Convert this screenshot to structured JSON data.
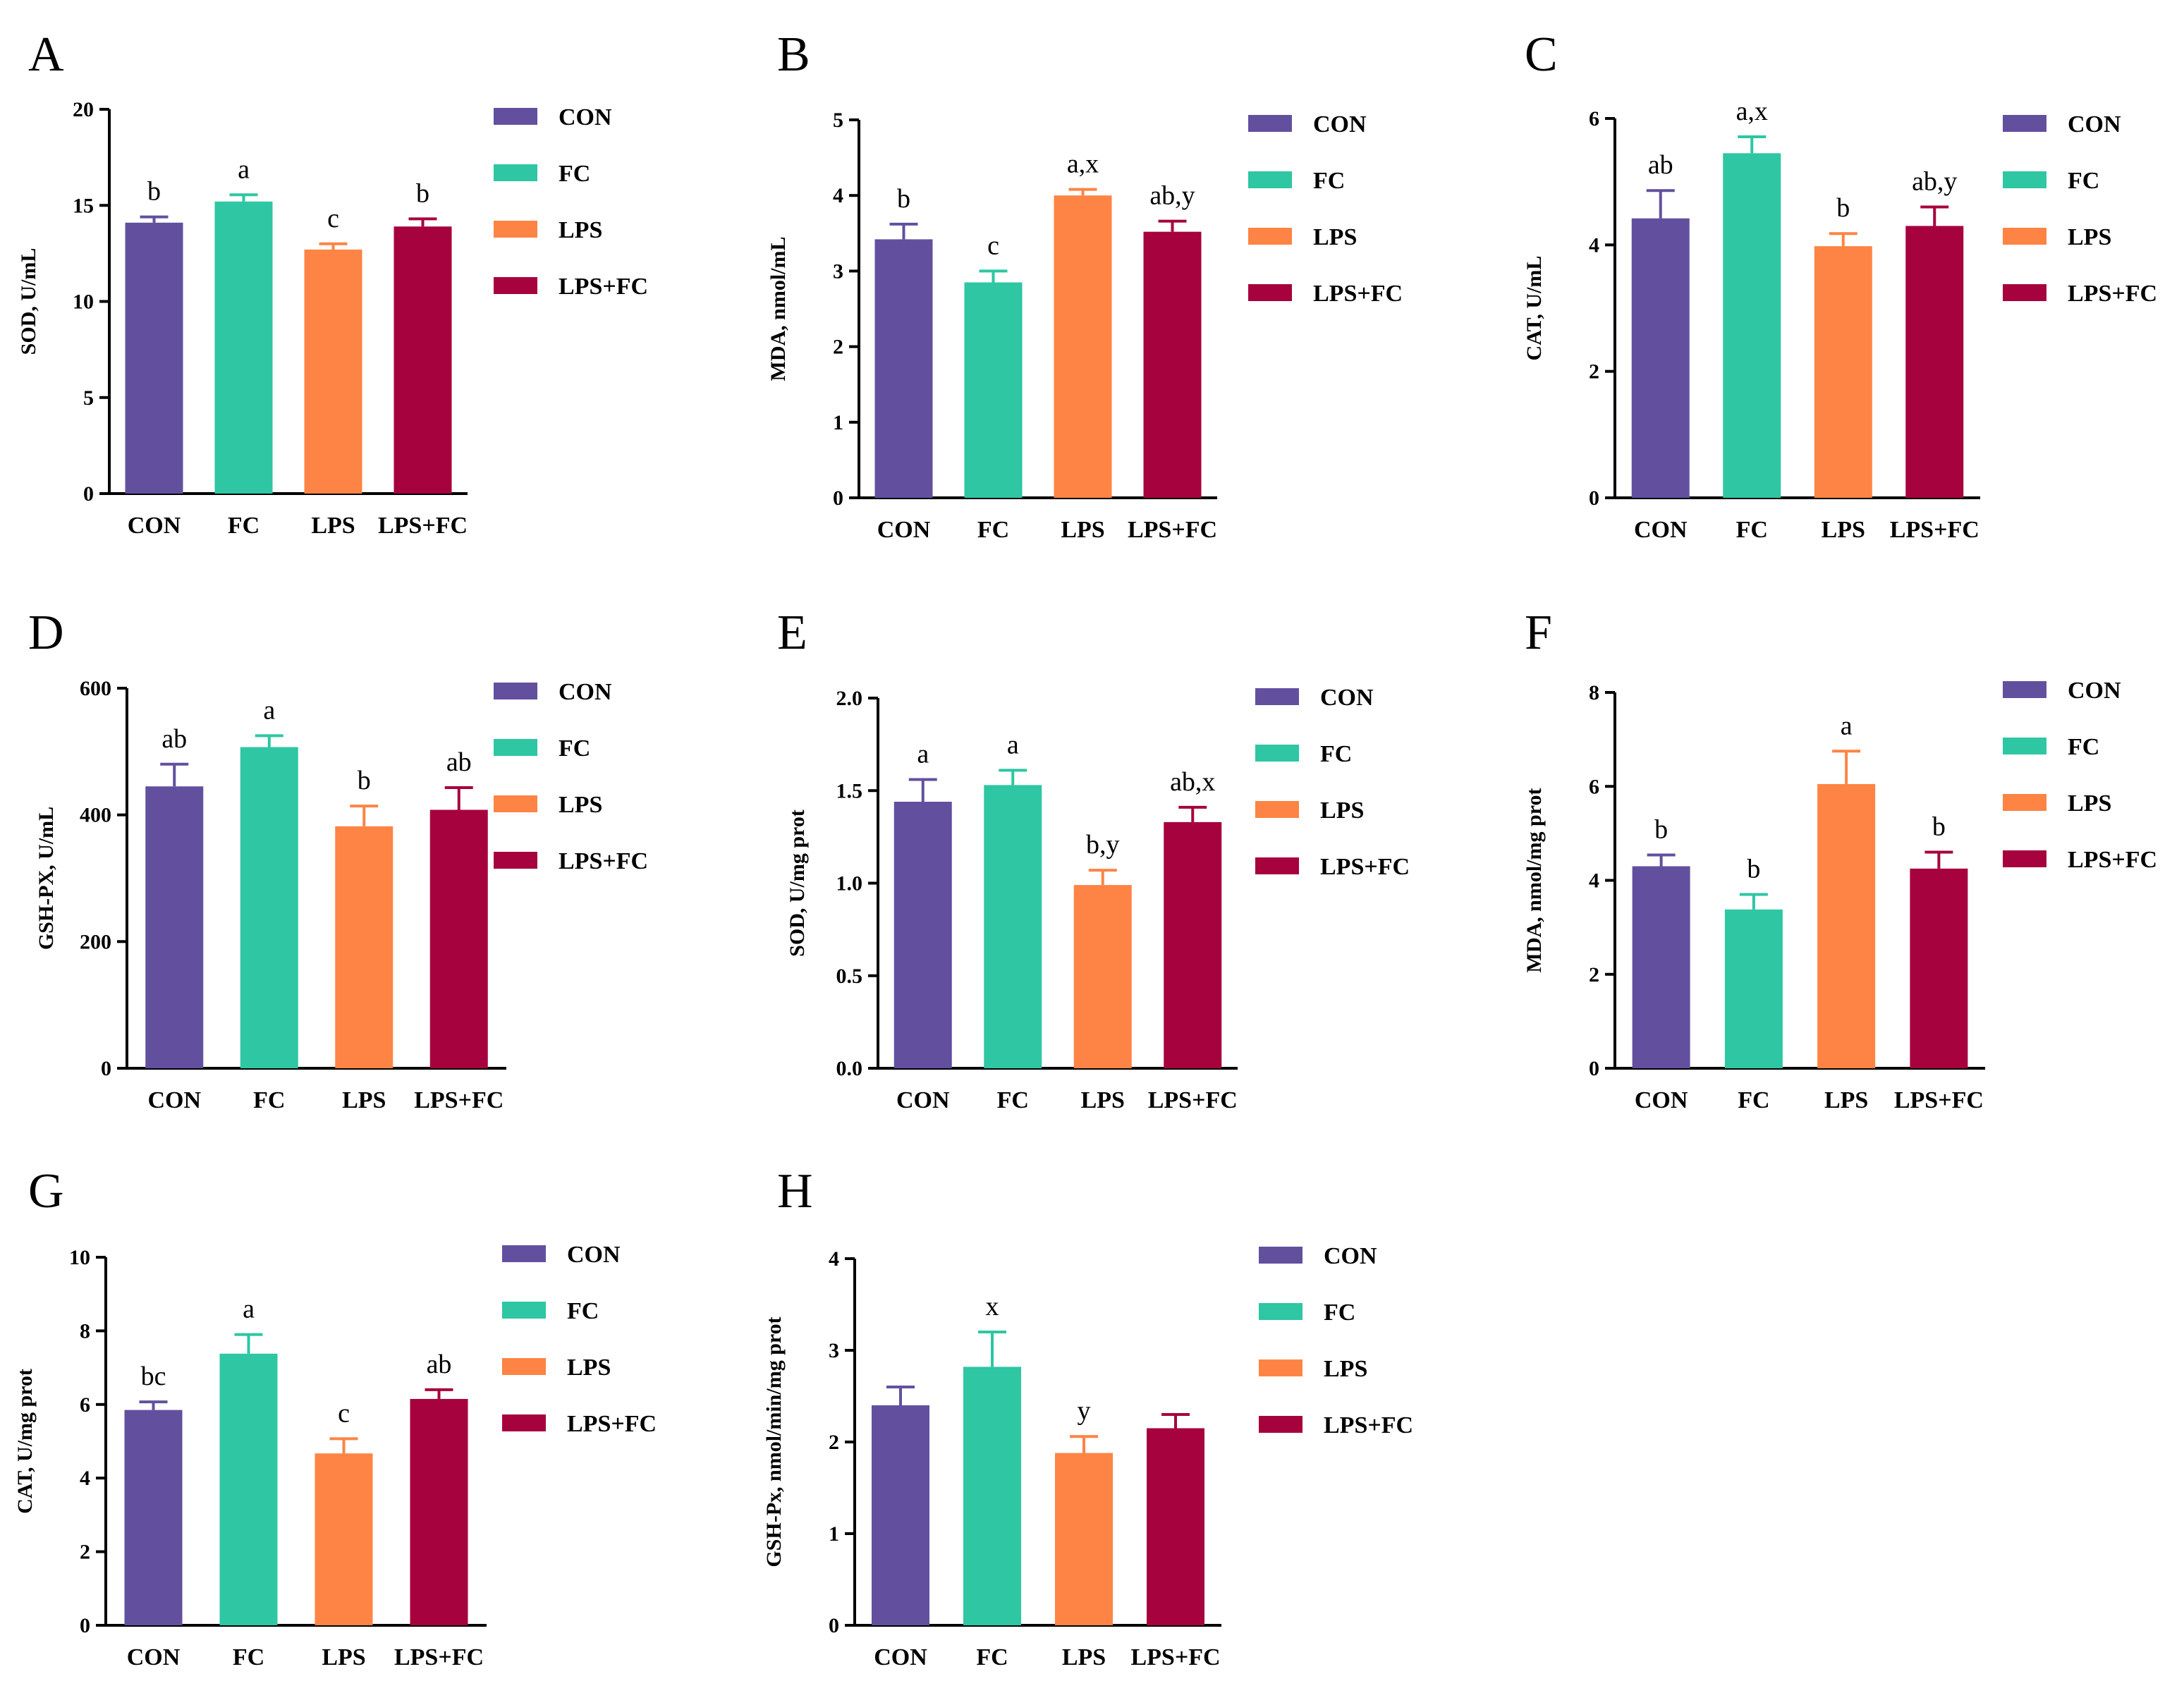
{
  "colors": {
    "CON": "#62509F",
    "FC": "#2EC6A3",
    "LPS": "#FD8444",
    "LPS+FC": "#A6023D"
  },
  "chart_data": [
    {
      "type": "bar",
      "panel": "A",
      "ylabel": "SOD, U/mL",
      "categories": [
        "CON",
        "FC",
        "LPS",
        "LPS+FC"
      ],
      "values": [
        14.1,
        15.2,
        12.7,
        13.9
      ],
      "errors": [
        0.3,
        0.35,
        0.3,
        0.4
      ],
      "significance": [
        "b",
        "a",
        "c",
        "b"
      ],
      "ylim": [
        0,
        20
      ],
      "yticks": [
        "0",
        "5",
        "10",
        "15",
        "20"
      ],
      "legend": [
        "CON",
        "FC",
        "LPS",
        "LPS+FC"
      ]
    },
    {
      "type": "bar",
      "panel": "B",
      "ylabel": "MDA, nmol/mL",
      "categories": [
        "CON",
        "FC",
        "LPS",
        "LPS+FC"
      ],
      "values": [
        3.42,
        2.85,
        4.0,
        3.52
      ],
      "errors": [
        0.2,
        0.15,
        0.08,
        0.14
      ],
      "significance": [
        "b",
        "c",
        "a,x",
        "ab,y"
      ],
      "ylim": [
        0,
        5
      ],
      "yticks": [
        "0",
        "1",
        "2",
        "3",
        "4",
        "5"
      ],
      "legend": [
        "CON",
        "FC",
        "LPS",
        "LPS+FC"
      ]
    },
    {
      "type": "bar",
      "panel": "C",
      "ylabel": "CAT, U/mL",
      "categories": [
        "CON",
        "FC",
        "LPS",
        "LPS+FC"
      ],
      "values": [
        4.42,
        5.45,
        3.98,
        4.3
      ],
      "errors": [
        0.44,
        0.26,
        0.2,
        0.3
      ],
      "significance": [
        "ab",
        "a,x",
        "b",
        "ab,y"
      ],
      "ylim": [
        0,
        6
      ],
      "yticks": [
        "0",
        "2",
        "4",
        "6"
      ],
      "legend": [
        "CON",
        "FC",
        "LPS",
        "LPS+FC"
      ]
    },
    {
      "type": "bar",
      "panel": "D",
      "ylabel": "GSH-PX, U/mL",
      "categories": [
        "CON",
        "FC",
        "LPS",
        "LPS+FC"
      ],
      "values": [
        445,
        507,
        382,
        408
      ],
      "errors": [
        35,
        18,
        32,
        35
      ],
      "significance": [
        "ab",
        "a",
        "b",
        "ab"
      ],
      "ylim": [
        0,
        600
      ],
      "yticks": [
        "0",
        "200",
        "400",
        "600"
      ],
      "legend": [
        "CON",
        "FC",
        "LPS",
        "LPS+FC"
      ]
    },
    {
      "type": "bar",
      "panel": "E",
      "ylabel": "SOD, U/mg prot",
      "categories": [
        "CON",
        "FC",
        "LPS",
        "LPS+FC"
      ],
      "values": [
        1.44,
        1.53,
        0.99,
        1.33
      ],
      "errors": [
        0.12,
        0.08,
        0.08,
        0.08
      ],
      "significance": [
        "a",
        "a",
        "b,y",
        "ab,x"
      ],
      "ylim": [
        0,
        2
      ],
      "yticks": [
        "0.0",
        "0.5",
        "1.0",
        "1.5",
        "2.0"
      ],
      "legend": [
        "CON",
        "FC",
        "LPS",
        "LPS+FC"
      ]
    },
    {
      "type": "bar",
      "panel": "F",
      "ylabel": "MDA, nmol/mg prot",
      "categories": [
        "CON",
        "FC",
        "LPS",
        "LPS+FC"
      ],
      "values": [
        4.3,
        3.38,
        6.05,
        4.25
      ],
      "errors": [
        0.24,
        0.32,
        0.7,
        0.35
      ],
      "significance": [
        "b",
        "b",
        "a",
        "b"
      ],
      "ylim": [
        0,
        8
      ],
      "yticks": [
        "0",
        "2",
        "4",
        "6",
        "8"
      ],
      "legend": [
        "CON",
        "FC",
        "LPS",
        "LPS+FC"
      ]
    },
    {
      "type": "bar",
      "panel": "G",
      "ylabel": "CAT, U/mg prot",
      "categories": [
        "CON",
        "FC",
        "LPS",
        "LPS+FC"
      ],
      "values": [
        5.85,
        7.38,
        4.67,
        6.15
      ],
      "errors": [
        0.22,
        0.52,
        0.4,
        0.25
      ],
      "significance": [
        "bc",
        "a",
        "c",
        "ab"
      ],
      "ylim": [
        0,
        10
      ],
      "yticks": [
        "0",
        "2",
        "4",
        "6",
        "8",
        "10"
      ],
      "legend": [
        "CON",
        "FC",
        "LPS",
        "LPS+FC"
      ]
    },
    {
      "type": "bar",
      "panel": "H",
      "ylabel": "GSH-Px, nmol/min/mg prot",
      "categories": [
        "CON",
        "FC",
        "LPS",
        "LPS+FC"
      ],
      "values": [
        2.4,
        2.82,
        1.88,
        2.15
      ],
      "errors": [
        0.2,
        0.38,
        0.18,
        0.15
      ],
      "significance": [
        "",
        "x",
        "y",
        ""
      ],
      "ylim": [
        0,
        4
      ],
      "yticks": [
        "0",
        "1",
        "2",
        "3",
        "4"
      ],
      "legend": [
        "CON",
        "FC",
        "LPS",
        "LPS+FC"
      ]
    }
  ]
}
